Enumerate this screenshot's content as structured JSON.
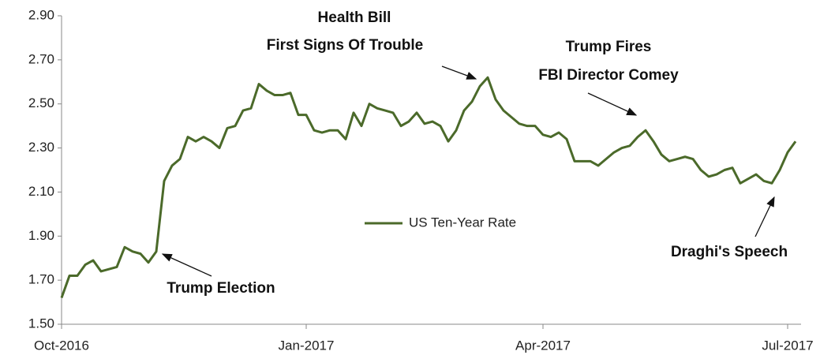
{
  "chart_data": {
    "type": "line",
    "categories": [
      "Oct-2016",
      null,
      null,
      null,
      null,
      null,
      null,
      null,
      null,
      null,
      null,
      null,
      null,
      null,
      null,
      null,
      null,
      null,
      null,
      null,
      null,
      null,
      null,
      null,
      null,
      null,
      null,
      null,
      null,
      null,
      null,
      "Jan-2017",
      null,
      null,
      null,
      null,
      null,
      null,
      null,
      null,
      null,
      null,
      null,
      null,
      null,
      null,
      null,
      null,
      null,
      null,
      null,
      null,
      null,
      null,
      null,
      null,
      null,
      null,
      null,
      null,
      null,
      "Apr-2017",
      null,
      null,
      null,
      null,
      null,
      null,
      null,
      null,
      null,
      null,
      null,
      null,
      null,
      null,
      null,
      null,
      null,
      null,
      null,
      null,
      null,
      null,
      null,
      null,
      null,
      null,
      null,
      null,
      null,
      null,
      "Jul-2017",
      null
    ],
    "series": [
      {
        "name": "US Ten-Year Rate",
        "color": "#4b6a2a",
        "values": [
          1.62,
          1.72,
          1.72,
          1.77,
          1.79,
          1.74,
          1.75,
          1.76,
          1.85,
          1.83,
          1.82,
          1.78,
          1.83,
          2.15,
          2.22,
          2.25,
          2.35,
          2.33,
          2.35,
          2.33,
          2.3,
          2.39,
          2.4,
          2.47,
          2.48,
          2.59,
          2.56,
          2.54,
          2.54,
          2.55,
          2.45,
          2.45,
          2.38,
          2.37,
          2.38,
          2.38,
          2.34,
          2.46,
          2.4,
          2.5,
          2.48,
          2.47,
          2.46,
          2.4,
          2.42,
          2.46,
          2.41,
          2.42,
          2.4,
          2.33,
          2.38,
          2.47,
          2.51,
          2.58,
          2.62,
          2.52,
          2.47,
          2.44,
          2.41,
          2.4,
          2.4,
          2.36,
          2.35,
          2.37,
          2.34,
          2.24,
          2.24,
          2.24,
          2.22,
          2.25,
          2.28,
          2.3,
          2.31,
          2.35,
          2.38,
          2.33,
          2.27,
          2.24,
          2.25,
          2.26,
          2.25,
          2.2,
          2.17,
          2.18,
          2.2,
          2.21,
          2.14,
          2.16,
          2.18,
          2.15,
          2.14,
          2.2,
          2.28,
          2.33
        ]
      }
    ],
    "ylim": [
      1.5,
      2.9
    ],
    "yticks": [
      {
        "value": 1.5,
        "label": "1.50"
      },
      {
        "value": 1.7,
        "label": "1.70"
      },
      {
        "value": 1.9,
        "label": "1.90"
      },
      {
        "value": 2.1,
        "label": "2.10"
      },
      {
        "value": 2.3,
        "label": "2.30"
      },
      {
        "value": 2.5,
        "label": "2.50"
      },
      {
        "value": 2.7,
        "label": "2.70"
      },
      {
        "value": 2.9,
        "label": "2.90"
      }
    ],
    "grid": false,
    "annotations": [
      "Health Bill",
      "First Signs Of Trouble",
      "Trump Fires",
      "FBI Director Comey",
      "Trump Election",
      "Draghi's Speech"
    ]
  }
}
